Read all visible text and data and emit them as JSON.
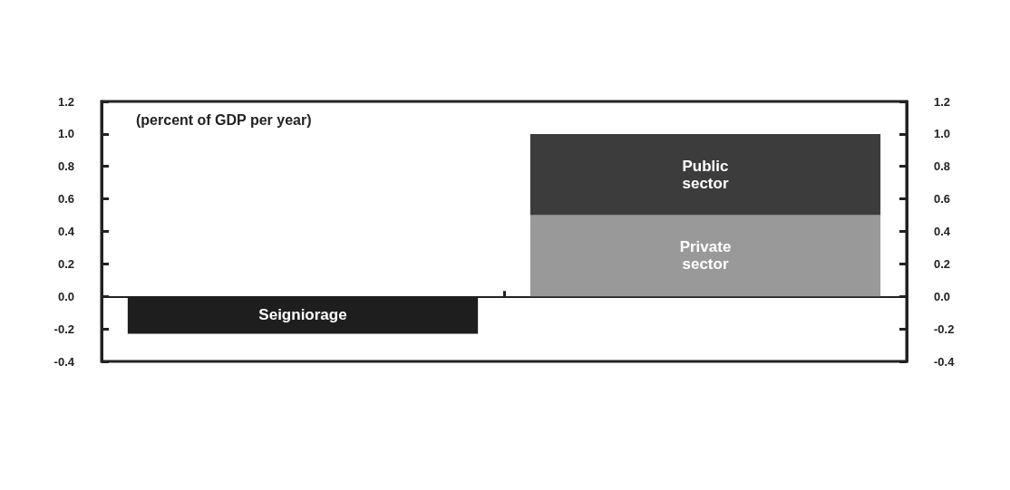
{
  "chart_data": {
    "type": "bar",
    "ylabel": "(percent of GDP per year)",
    "categories": [
      null,
      null
    ],
    "stacked": true,
    "series": [
      {
        "name": "Seigniorage",
        "color": "#1e1e1e",
        "values": [
          -0.23,
          null
        ]
      },
      {
        "name": "Private sector",
        "color": "#999999",
        "values": [
          null,
          0.5
        ]
      },
      {
        "name": "Public sector",
        "color": "#3c3c3c",
        "values": [
          null,
          0.5
        ]
      }
    ],
    "ylim": [
      -0.4,
      1.2
    ],
    "yticks": [
      {
        "value": -0.4,
        "label": "-0.4"
      },
      {
        "value": -0.2,
        "label": "-0.2"
      },
      {
        "value": 0,
        "label": "0.0"
      },
      {
        "value": 0.2,
        "label": "0.2"
      },
      {
        "value": 0.4,
        "label": "0.4"
      },
      {
        "value": 0.6,
        "label": "0.6"
      },
      {
        "value": 0.8,
        "label": "0.8"
      },
      {
        "value": 1,
        "label": "1.0"
      },
      {
        "value": 1.2,
        "label": "1.2"
      }
    ],
    "y2lim": [
      -0.4,
      1.2
    ],
    "y2ticks": [
      {
        "value": -0.4,
        "label": "-0.4"
      },
      {
        "value": -0.2,
        "label": "-0.2"
      },
      {
        "value": 0,
        "label": "0.0"
      },
      {
        "value": 0.2,
        "label": "0.2"
      },
      {
        "value": 0.4,
        "label": "0.4"
      },
      {
        "value": 0.6,
        "label": "0.6"
      },
      {
        "value": 0.8,
        "label": "0.8"
      },
      {
        "value": 1,
        "label": "1.0"
      },
      {
        "value": 1.2,
        "label": "1.2"
      }
    ],
    "legend": false,
    "tick_labels": "y"
  }
}
